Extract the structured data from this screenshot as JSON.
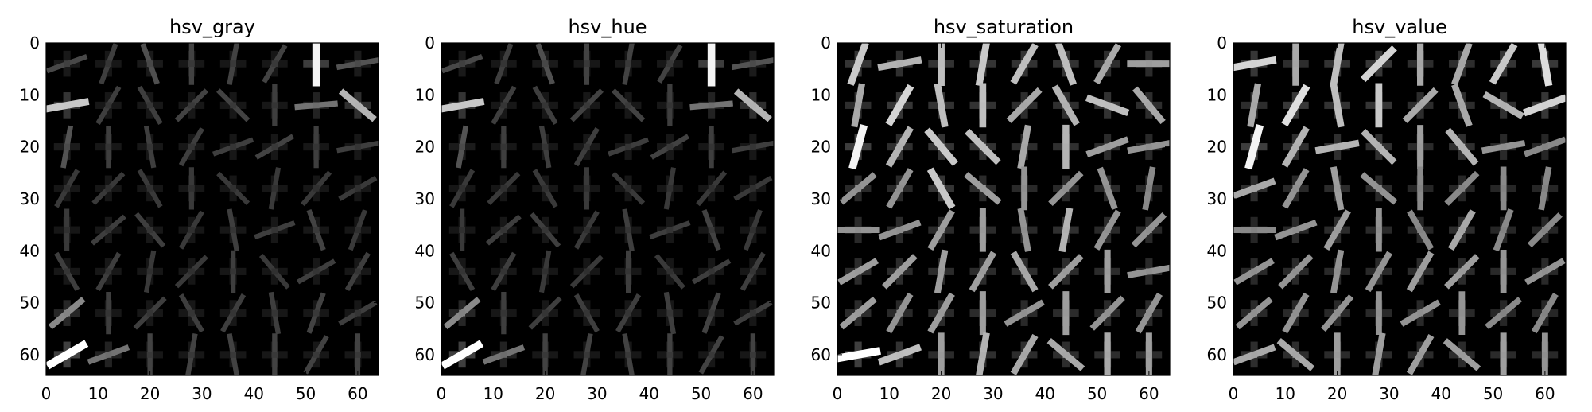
{
  "chart_data": [
    {
      "type": "heatmap",
      "title": "hsv_gray",
      "xlim": [
        0,
        64
      ],
      "ylim": [
        64,
        0
      ],
      "xticks": [
        0,
        10,
        20,
        30,
        40,
        50,
        60
      ],
      "yticks": [
        0,
        10,
        20,
        30,
        40,
        50,
        60
      ],
      "colormap": "gray",
      "grid": false,
      "cells": 8,
      "cell_size": 8,
      "strength": [
        [
          0.15,
          0.1,
          0.18,
          0.12,
          0.12,
          0.12,
          0.95,
          0.2
        ],
        [
          0.75,
          0.1,
          0.1,
          0.12,
          0.12,
          0.1,
          0.35,
          0.65
        ],
        [
          0.2,
          0.1,
          0.1,
          0.1,
          0.1,
          0.12,
          0.1,
          0.1
        ],
        [
          0.08,
          0.08,
          0.08,
          0.08,
          0.08,
          0.08,
          0.08,
          0.08
        ],
        [
          0.08,
          0.1,
          0.1,
          0.08,
          0.1,
          0.1,
          0.12,
          0.08
        ],
        [
          0.1,
          0.1,
          0.08,
          0.08,
          0.1,
          0.08,
          0.1,
          0.1
        ],
        [
          0.45,
          0.1,
          0.1,
          0.1,
          0.1,
          0.1,
          0.12,
          0.1
        ],
        [
          1.0,
          0.35,
          0.12,
          0.12,
          0.12,
          0.12,
          0.12,
          0.12
        ]
      ],
      "angle": [
        [
          20,
          70,
          110,
          90,
          80,
          60,
          90,
          10
        ],
        [
          10,
          60,
          120,
          45,
          135,
          90,
          5,
          140
        ],
        [
          80,
          90,
          100,
          60,
          20,
          30,
          90,
          10
        ],
        [
          60,
          45,
          120,
          90,
          135,
          80,
          50,
          30
        ],
        [
          90,
          40,
          130,
          60,
          100,
          20,
          110,
          70
        ],
        [
          120,
          60,
          80,
          45,
          90,
          130,
          30,
          60
        ],
        [
          40,
          90,
          45,
          120,
          60,
          100,
          70,
          30
        ],
        [
          30,
          20,
          90,
          80,
          100,
          90,
          60,
          90
        ]
      ]
    },
    {
      "type": "heatmap",
      "title": "hsv_hue",
      "xlim": [
        0,
        64
      ],
      "ylim": [
        64,
        0
      ],
      "xticks": [
        0,
        10,
        20,
        30,
        40,
        50,
        60
      ],
      "yticks": [
        0,
        10,
        20,
        30,
        40,
        50,
        60
      ],
      "colormap": "gray",
      "grid": false,
      "cells": 8,
      "cell_size": 8,
      "strength": [
        [
          0.15,
          0.1,
          0.18,
          0.12,
          0.12,
          0.12,
          0.95,
          0.2
        ],
        [
          0.75,
          0.1,
          0.1,
          0.12,
          0.12,
          0.1,
          0.35,
          0.65
        ],
        [
          0.2,
          0.1,
          0.1,
          0.1,
          0.1,
          0.12,
          0.1,
          0.1
        ],
        [
          0.08,
          0.08,
          0.08,
          0.08,
          0.08,
          0.08,
          0.08,
          0.08
        ],
        [
          0.08,
          0.1,
          0.1,
          0.08,
          0.1,
          0.1,
          0.12,
          0.08
        ],
        [
          0.1,
          0.1,
          0.08,
          0.08,
          0.1,
          0.08,
          0.1,
          0.1
        ],
        [
          0.45,
          0.1,
          0.1,
          0.1,
          0.1,
          0.1,
          0.12,
          0.1
        ],
        [
          1.0,
          0.35,
          0.12,
          0.12,
          0.12,
          0.12,
          0.12,
          0.12
        ]
      ],
      "angle": [
        [
          20,
          70,
          110,
          90,
          80,
          60,
          90,
          10
        ],
        [
          10,
          60,
          120,
          45,
          135,
          90,
          5,
          140
        ],
        [
          80,
          90,
          100,
          60,
          20,
          30,
          90,
          10
        ],
        [
          60,
          45,
          120,
          90,
          135,
          80,
          50,
          30
        ],
        [
          90,
          40,
          130,
          60,
          100,
          20,
          110,
          70
        ],
        [
          120,
          60,
          80,
          45,
          90,
          130,
          30,
          60
        ],
        [
          40,
          90,
          45,
          120,
          60,
          100,
          70,
          30
        ],
        [
          30,
          20,
          90,
          80,
          100,
          90,
          60,
          90
        ]
      ]
    },
    {
      "type": "heatmap",
      "title": "hsv_saturation",
      "xlim": [
        0,
        64
      ],
      "ylim": [
        64,
        0
      ],
      "xticks": [
        0,
        10,
        20,
        30,
        40,
        50,
        60
      ],
      "yticks": [
        0,
        10,
        20,
        30,
        40,
        50,
        60
      ],
      "colormap": "gray",
      "grid": false,
      "cells": 8,
      "cell_size": 8,
      "strength": [
        [
          0.75,
          0.65,
          0.7,
          0.75,
          0.7,
          0.7,
          0.6,
          0.55
        ],
        [
          0.6,
          0.8,
          0.7,
          0.7,
          0.6,
          0.65,
          0.7,
          0.6
        ],
        [
          0.95,
          0.65,
          0.75,
          0.7,
          0.6,
          0.65,
          0.55,
          0.5
        ],
        [
          0.5,
          0.5,
          0.75,
          0.55,
          0.5,
          0.5,
          0.5,
          0.45
        ],
        [
          0.5,
          0.5,
          0.55,
          0.55,
          0.5,
          0.65,
          0.5,
          0.5
        ],
        [
          0.55,
          0.55,
          0.55,
          0.55,
          0.6,
          0.55,
          0.55,
          0.5
        ],
        [
          0.55,
          0.5,
          0.55,
          0.55,
          0.5,
          0.55,
          0.5,
          0.5
        ],
        [
          1.0,
          0.7,
          0.55,
          0.65,
          0.6,
          0.6,
          0.6,
          0.55
        ]
      ],
      "angle": [
        [
          70,
          10,
          90,
          80,
          60,
          110,
          60,
          0
        ],
        [
          80,
          60,
          100,
          90,
          45,
          120,
          160,
          130
        ],
        [
          75,
          60,
          130,
          135,
          80,
          90,
          20,
          10
        ],
        [
          40,
          60,
          120,
          140,
          90,
          45,
          110,
          80
        ],
        [
          0,
          20,
          60,
          90,
          100,
          80,
          60,
          45
        ],
        [
          30,
          45,
          80,
          60,
          120,
          45,
          90,
          10
        ],
        [
          40,
          60,
          60,
          90,
          30,
          90,
          45,
          60
        ],
        [
          10,
          20,
          90,
          80,
          60,
          140,
          90,
          90
        ]
      ]
    },
    {
      "type": "heatmap",
      "title": "hsv_value",
      "xlim": [
        0,
        64
      ],
      "ylim": [
        64,
        0
      ],
      "xticks": [
        0,
        10,
        20,
        30,
        40,
        50,
        60
      ],
      "yticks": [
        0,
        10,
        20,
        30,
        40,
        50,
        60
      ],
      "colormap": "gray",
      "grid": false,
      "cells": 8,
      "cell_size": 8,
      "strength": [
        [
          0.8,
          0.6,
          0.7,
          0.8,
          0.6,
          0.6,
          0.75,
          0.85
        ],
        [
          0.6,
          0.85,
          0.7,
          0.75,
          0.6,
          0.6,
          0.65,
          0.8
        ],
        [
          0.95,
          0.65,
          0.65,
          0.65,
          0.55,
          0.65,
          0.5,
          0.45
        ],
        [
          0.6,
          0.5,
          0.55,
          0.5,
          0.45,
          0.45,
          0.45,
          0.45
        ],
        [
          0.45,
          0.5,
          0.55,
          0.5,
          0.45,
          0.6,
          0.45,
          0.45
        ],
        [
          0.5,
          0.5,
          0.5,
          0.5,
          0.55,
          0.55,
          0.5,
          0.5
        ],
        [
          0.5,
          0.5,
          0.5,
          0.5,
          0.5,
          0.5,
          0.45,
          0.45
        ],
        [
          0.6,
          0.6,
          0.55,
          0.55,
          0.55,
          0.55,
          0.55,
          0.5
        ]
      ],
      "angle": [
        [
          10,
          90,
          80,
          45,
          90,
          70,
          60,
          100
        ],
        [
          80,
          60,
          100,
          90,
          45,
          110,
          150,
          20
        ],
        [
          75,
          60,
          10,
          135,
          90,
          130,
          10,
          20
        ],
        [
          20,
          60,
          100,
          140,
          90,
          45,
          90,
          80
        ],
        [
          0,
          20,
          60,
          90,
          120,
          60,
          70,
          45
        ],
        [
          30,
          45,
          80,
          60,
          60,
          45,
          90,
          30
        ],
        [
          40,
          60,
          50,
          90,
          30,
          90,
          40,
          60
        ],
        [
          20,
          140,
          90,
          80,
          60,
          140,
          90,
          90
        ]
      ]
    }
  ]
}
